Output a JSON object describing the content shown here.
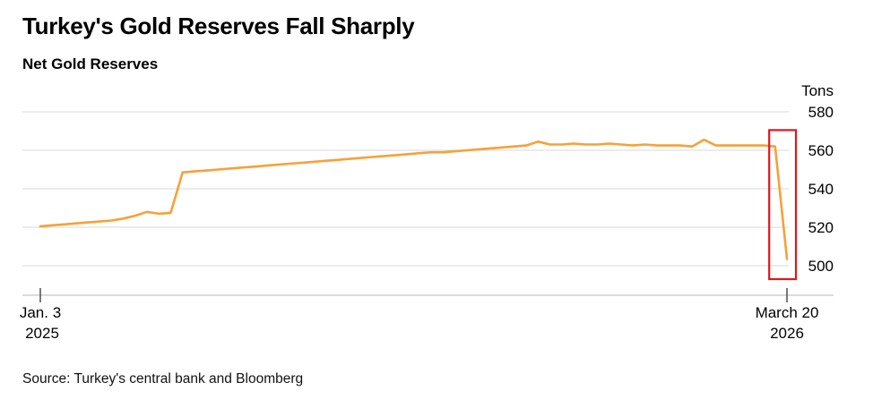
{
  "header": {
    "title": "Turkey's Gold Reserves Fall Sharply",
    "subtitle": "Net Gold Reserves"
  },
  "source": "Source: Turkey's central bank and Bloomberg",
  "colors": {
    "line": "#f7a139",
    "highlight": "#e0161c",
    "gridline": "#d9d9d9",
    "axis": "#b7b7b7",
    "tick": "#4d4d4d"
  },
  "chart_data": {
    "type": "line",
    "title": "Turkey's Gold Reserves Fall Sharply",
    "subtitle": "Net Gold Reserves",
    "unit_label": "Tons",
    "ylim": [
      500,
      580
    ],
    "y_ticks": [
      580,
      560,
      540,
      520,
      500
    ],
    "grid": "horizontal",
    "tick_label_side": "right",
    "legend": "none",
    "x_axis": {
      "start_label_line1": "Jan. 3",
      "start_label_line2": "2025",
      "end_label_line1": "March 20",
      "end_label_line2": "2026"
    },
    "series": [
      {
        "name": "Net Gold Reserves",
        "color": "#f7a139",
        "values": [
          520.5,
          521,
          521.5,
          522,
          522.5,
          523,
          523.5,
          524.5,
          526,
          528,
          527,
          527.5,
          548.5,
          549,
          549.5,
          550,
          550.5,
          551,
          551.5,
          552,
          552.5,
          553,
          553.5,
          554,
          554.5,
          555,
          555.5,
          556,
          556.5,
          557,
          557.5,
          558,
          558.5,
          559,
          559,
          559.5,
          560,
          560.5,
          561,
          561.5,
          562,
          562.5,
          564.5,
          563,
          563,
          563.5,
          563,
          563,
          563.5,
          563,
          562.5,
          563,
          562.5,
          562.5,
          562.5,
          562,
          565.5,
          562.5,
          562.5,
          562.5,
          562.5,
          562.5,
          562,
          503.5
        ]
      }
    ],
    "annotation": {
      "type": "highlight-rect",
      "description": "red box highlighting the sharp drop at the end of the series",
      "color": "#e0161c",
      "x_from_index": 61.5,
      "x_to_index": 63.75,
      "y_from": 493,
      "y_to": 570.5
    }
  }
}
